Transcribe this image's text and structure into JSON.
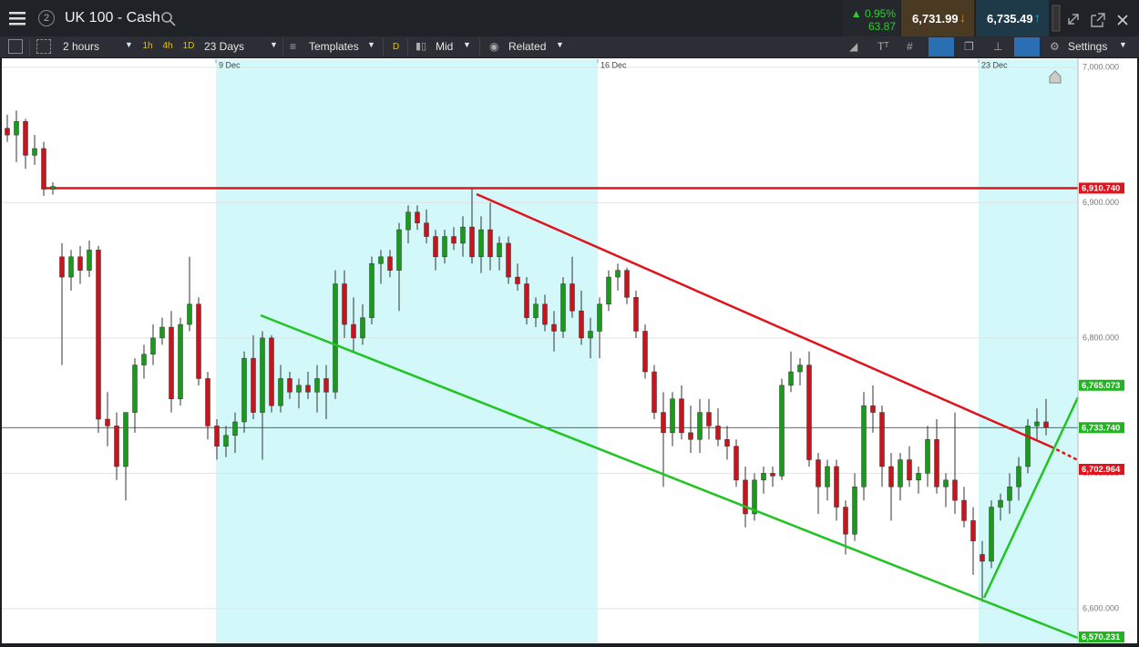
{
  "header": {
    "badge": "2",
    "title": "UK 100 - Cash",
    "change_pct": "0.95%",
    "change_pts": "63.87",
    "sell": "6,731.99",
    "buy": "6,735.49"
  },
  "toolbar": {
    "interval": "2 hours",
    "quick": [
      "1h",
      "4h",
      "1D"
    ],
    "range": "23 Days",
    "templates": "Templates",
    "d": "D",
    "price_type": "Mid",
    "related": "Related",
    "settings": "Settings"
  },
  "chart_data": {
    "type": "candlestick",
    "up_color": "#1a9a1a",
    "down_color": "#c8141c",
    "grid": true,
    "xlim": [
      -0.8,
      117.5
    ],
    "xticks": [
      {
        "value": 22.9,
        "label": "9 Dec"
      },
      {
        "value": 64.8,
        "label": "16 Dec"
      },
      {
        "value": 106.6,
        "label": "23 Dec"
      }
    ],
    "ylim": [
      6575,
      7006
    ],
    "yticks": [
      {
        "value": 7000,
        "label": "7,000.000"
      },
      {
        "value": 6900,
        "label": "6,900.000"
      },
      {
        "value": 6800,
        "label": "6,800.000"
      },
      {
        "value": 6700,
        "label": "6,700.000"
      },
      {
        "value": 6600,
        "label": "6,600.000"
      }
    ],
    "levels": [
      {
        "value": 6910.74,
        "label": "6,910.740",
        "color": "#e0141c"
      },
      {
        "value": 6765.073,
        "label": "6,765.073",
        "color": "#22b422"
      },
      {
        "value": 6733.74,
        "label": "6,733.740",
        "color": "#22b422"
      },
      {
        "value": 6702.964,
        "label": "6,702.964",
        "color": "#e0141c"
      },
      {
        "value": 6570.231,
        "label": "6,570.231",
        "color": "#22b422"
      }
    ],
    "candles": [
      [
        6955,
        6965,
        6945,
        6950
      ],
      [
        6950,
        6968,
        6930,
        6960
      ],
      [
        6960,
        6962,
        6925,
        6935
      ],
      [
        6935,
        6950,
        6928,
        6940
      ],
      [
        6940,
        6945,
        6905,
        6910
      ],
      [
        6910,
        6915,
        6906,
        6912
      ],
      [
        6860,
        6870,
        6780,
        6845
      ],
      [
        6845,
        6865,
        6835,
        6860
      ],
      [
        6860,
        6868,
        6840,
        6850
      ],
      [
        6850,
        6872,
        6845,
        6865
      ],
      [
        6865,
        6868,
        6730,
        6740
      ],
      [
        6740,
        6760,
        6720,
        6735
      ],
      [
        6735,
        6745,
        6695,
        6705
      ],
      [
        6705,
        6745,
        6680,
        6745
      ],
      [
        6745,
        6785,
        6730,
        6780
      ],
      [
        6780,
        6795,
        6770,
        6788
      ],
      [
        6788,
        6810,
        6780,
        6800
      ],
      [
        6800,
        6815,
        6795,
        6808
      ],
      [
        6808,
        6820,
        6745,
        6755
      ],
      [
        6755,
        6815,
        6750,
        6810
      ],
      [
        6810,
        6860,
        6805,
        6825
      ],
      [
        6825,
        6830,
        6765,
        6770
      ],
      [
        6770,
        6775,
        6725,
        6735
      ],
      [
        6735,
        6740,
        6710,
        6720
      ],
      [
        6720,
        6735,
        6712,
        6728
      ],
      [
        6728,
        6745,
        6715,
        6738
      ],
      [
        6738,
        6790,
        6730,
        6785
      ],
      [
        6785,
        6802,
        6740,
        6745
      ],
      [
        6745,
        6805,
        6710,
        6800
      ],
      [
        6800,
        6802,
        6745,
        6750
      ],
      [
        6750,
        6780,
        6745,
        6770
      ],
      [
        6770,
        6775,
        6755,
        6760
      ],
      [
        6760,
        6770,
        6748,
        6765
      ],
      [
        6765,
        6775,
        6755,
        6760
      ],
      [
        6760,
        6780,
        6745,
        6770
      ],
      [
        6770,
        6780,
        6740,
        6760
      ],
      [
        6760,
        6850,
        6755,
        6840
      ],
      [
        6840,
        6850,
        6800,
        6810
      ],
      [
        6810,
        6830,
        6790,
        6800
      ],
      [
        6800,
        6825,
        6795,
        6815
      ],
      [
        6815,
        6860,
        6810,
        6855
      ],
      [
        6855,
        6865,
        6840,
        6860
      ],
      [
        6860,
        6865,
        6845,
        6850
      ],
      [
        6850,
        6885,
        6820,
        6880
      ],
      [
        6880,
        6898,
        6870,
        6893
      ],
      [
        6893,
        6898,
        6880,
        6885
      ],
      [
        6885,
        6895,
        6870,
        6875
      ],
      [
        6875,
        6880,
        6850,
        6860
      ],
      [
        6860,
        6880,
        6855,
        6875
      ],
      [
        6875,
        6882,
        6865,
        6870
      ],
      [
        6870,
        6890,
        6860,
        6882
      ],
      [
        6882,
        6910,
        6855,
        6860
      ],
      [
        6860,
        6890,
        6848,
        6880
      ],
      [
        6880,
        6900,
        6850,
        6860
      ],
      [
        6860,
        6875,
        6850,
        6870
      ],
      [
        6870,
        6875,
        6840,
        6845
      ],
      [
        6845,
        6855,
        6835,
        6840
      ],
      [
        6840,
        6845,
        6810,
        6815
      ],
      [
        6815,
        6830,
        6808,
        6825
      ],
      [
        6825,
        6832,
        6805,
        6810
      ],
      [
        6810,
        6820,
        6790,
        6805
      ],
      [
        6805,
        6845,
        6800,
        6840
      ],
      [
        6840,
        6860,
        6815,
        6820
      ],
      [
        6820,
        6835,
        6795,
        6800
      ],
      [
        6800,
        6815,
        6785,
        6805
      ],
      [
        6805,
        6830,
        6785,
        6825
      ],
      [
        6825,
        6850,
        6820,
        6845
      ],
      [
        6845,
        6855,
        6835,
        6850
      ],
      [
        6850,
        6852,
        6825,
        6830
      ],
      [
        6830,
        6835,
        6800,
        6805
      ],
      [
        6805,
        6810,
        6770,
        6775
      ],
      [
        6775,
        6780,
        6740,
        6745
      ],
      [
        6745,
        6760,
        6690,
        6730
      ],
      [
        6730,
        6760,
        6720,
        6755
      ],
      [
        6755,
        6765,
        6725,
        6730
      ],
      [
        6730,
        6750,
        6715,
        6725
      ],
      [
        6725,
        6755,
        6715,
        6745
      ],
      [
        6745,
        6755,
        6725,
        6735
      ],
      [
        6735,
        6748,
        6720,
        6725
      ],
      [
        6725,
        6735,
        6710,
        6720
      ],
      [
        6720,
        6725,
        6690,
        6695
      ],
      [
        6695,
        6705,
        6660,
        6670
      ],
      [
        6670,
        6700,
        6665,
        6695
      ],
      [
        6695,
        6705,
        6685,
        6700
      ],
      [
        6700,
        6705,
        6690,
        6698
      ],
      [
        6698,
        6770,
        6695,
        6765
      ],
      [
        6765,
        6790,
        6760,
        6775
      ],
      [
        6775,
        6785,
        6765,
        6780
      ],
      [
        6780,
        6790,
        6705,
        6710
      ],
      [
        6710,
        6715,
        6670,
        6690
      ],
      [
        6690,
        6710,
        6680,
        6705
      ],
      [
        6705,
        6710,
        6665,
        6675
      ],
      [
        6675,
        6680,
        6640,
        6655
      ],
      [
        6655,
        6700,
        6650,
        6690
      ],
      [
        6690,
        6760,
        6680,
        6750
      ],
      [
        6750,
        6765,
        6730,
        6745
      ],
      [
        6745,
        6750,
        6690,
        6705
      ],
      [
        6705,
        6715,
        6665,
        6690
      ],
      [
        6690,
        6715,
        6680,
        6710
      ],
      [
        6710,
        6720,
        6690,
        6695
      ],
      [
        6695,
        6705,
        6685,
        6700
      ],
      [
        6700,
        6735,
        6690,
        6725
      ],
      [
        6725,
        6740,
        6685,
        6690
      ],
      [
        6690,
        6700,
        6675,
        6695
      ],
      [
        6695,
        6745,
        6670,
        6680
      ],
      [
        6680,
        6690,
        6660,
        6665
      ],
      [
        6665,
        6675,
        6625,
        6650
      ],
      [
        6640,
        6650,
        6605,
        6635
      ],
      [
        6635,
        6680,
        6630,
        6675
      ],
      [
        6675,
        6685,
        6665,
        6680
      ],
      [
        6680,
        6700,
        6670,
        6690
      ],
      [
        6690,
        6712,
        6680,
        6705
      ],
      [
        6705,
        6740,
        6700,
        6735
      ],
      [
        6735,
        6748,
        6725,
        6738
      ],
      [
        6738,
        6755,
        6728,
        6734
      ]
    ]
  }
}
